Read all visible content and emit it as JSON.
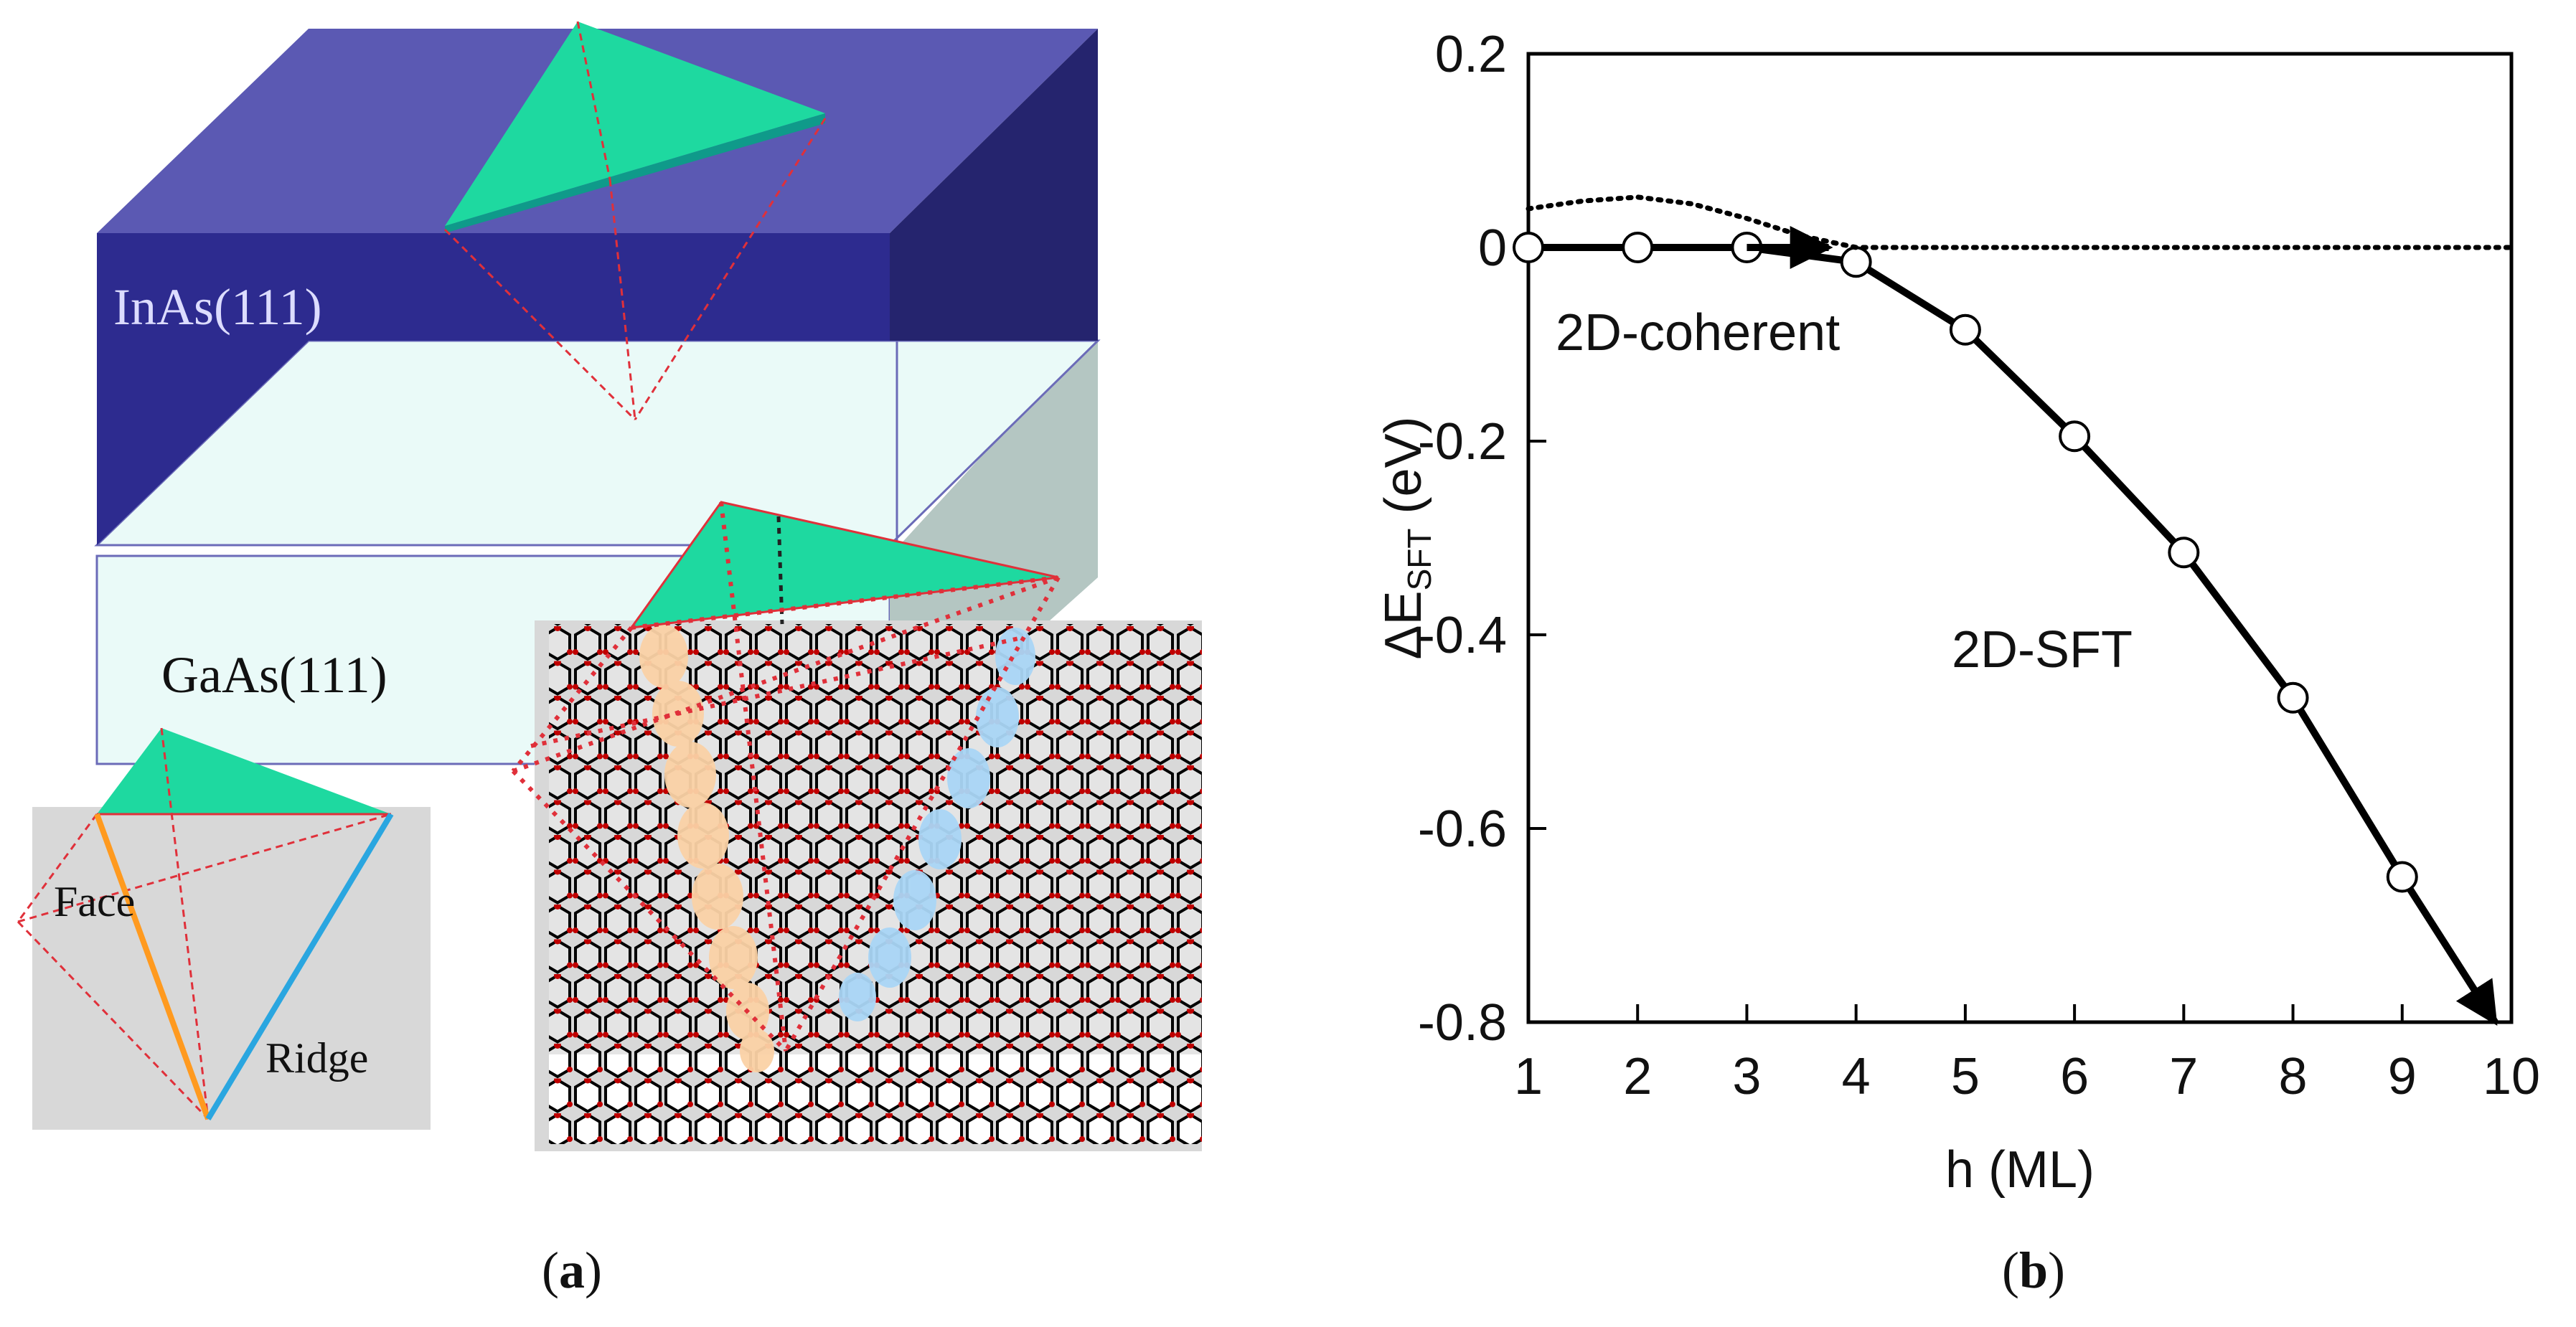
{
  "panel_a": {
    "caption_open": "(",
    "caption_letter": "a",
    "caption_close": ")",
    "label_top_layer": "InAs(111)",
    "label_substrate": "GaAs(111)",
    "label_face": "Face",
    "label_ridge": "Ridge",
    "colors": {
      "inas_front": "#2d2b8f",
      "inas_top": "#5b59b3",
      "inas_side": "#25246e",
      "gaas": "#eafaf8",
      "gaas_side": "#b4c6c2",
      "tetrahedron": "#1ed9a0",
      "inset_bg": "#d8d8d8",
      "face_line": "#ff9a1f",
      "ridge_line": "#2aa6e0",
      "guide_line": "#e0303a",
      "atom_orange": "#fbd2a6",
      "atom_blue": "#aad6f6"
    }
  },
  "panel_b": {
    "caption_open": "(",
    "caption_letter": "b",
    "caption_close": ")",
    "label_coherent": "2D-coherent",
    "label_sft": "2D-SFT"
  },
  "chart_data": {
    "type": "line",
    "xlabel": "h (ML)",
    "ylabel_main": "ΔE",
    "ylabel_sub": "SFT",
    "ylabel_unit": " (eV)",
    "xlim": [
      1,
      10
    ],
    "ylim": [
      -0.8,
      0.2
    ],
    "xticks": [
      1,
      2,
      3,
      4,
      5,
      6,
      7,
      8,
      9,
      10
    ],
    "yticks": [
      0.2,
      0,
      -0.2,
      -0.4,
      -0.6,
      -0.8
    ],
    "ytick_labels": [
      "0.2",
      "0",
      "-0.2",
      "-0.4",
      "-0.6",
      "-0.8"
    ],
    "grid": false,
    "series": [
      {
        "style": "solid-markers",
        "x": [
          1,
          2,
          3,
          4,
          5,
          6,
          7,
          8,
          9
        ],
        "y": [
          0.0,
          0.0,
          0.0,
          -0.015,
          -0.085,
          -0.195,
          -0.315,
          -0.465,
          -0.65
        ],
        "arrow_to": [
          9.85,
          -0.8
        ]
      },
      {
        "style": "dotted",
        "x": [
          1,
          1.5,
          2,
          2.5,
          3,
          3.5,
          4,
          5,
          6,
          7,
          8,
          9,
          10
        ],
        "y": [
          0.04,
          0.048,
          0.052,
          0.045,
          0.03,
          0.012,
          0.0,
          0.0,
          0.0,
          0.0,
          0.0,
          0.0,
          0.0
        ]
      },
      {
        "style": "solid-arrow",
        "x": [
          3,
          3.75
        ],
        "y": [
          0.0,
          0.0
        ]
      }
    ]
  }
}
